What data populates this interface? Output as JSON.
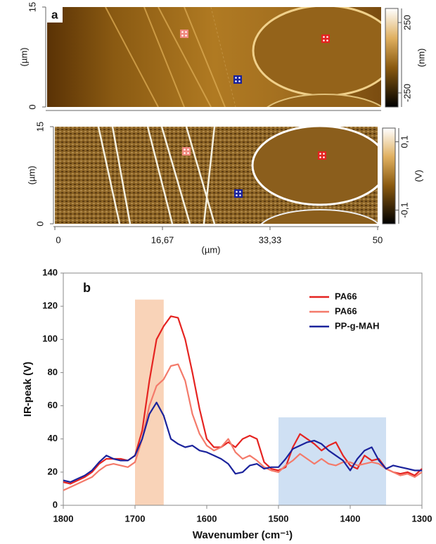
{
  "chart_data": [
    {
      "type": "image",
      "title": "a",
      "ylabel": "(µm)",
      "ylim": [
        0,
        15
      ],
      "yticks": [
        0,
        15
      ],
      "clim": [
        -350,
        350
      ],
      "cticks": [
        250,
        -250
      ],
      "clabel": "(nm)"
    },
    {
      "type": "image",
      "ylabel": "(µm)",
      "xlabel": "(µm)",
      "xlim": [
        0,
        50
      ],
      "ylim": [
        0,
        15
      ],
      "yticks": [
        0,
        15
      ],
      "xticks": [
        0,
        {
          "value": 16.67,
          "label": "16,67"
        },
        {
          "value": 33.33,
          "label": "33,33"
        },
        50
      ],
      "clim": [
        -0.14,
        0.14
      ],
      "cticks": [
        {
          "value": 0.1,
          "label": "0,1"
        },
        {
          "value": -0.1,
          "label": "-0,1"
        }
      ],
      "clabel": "(V)"
    },
    {
      "type": "line",
      "title": "b",
      "xlabel": "Wavenumber (cm⁻¹)",
      "ylabel": "IR-peak (V)",
      "xlim": [
        1800,
        1300
      ],
      "xticks": [
        1800,
        1700,
        1600,
        1500,
        1400,
        1300
      ],
      "ylim": [
        0,
        140
      ],
      "yticks": [
        0,
        20,
        40,
        60,
        80,
        100,
        120,
        140
      ],
      "legend": "upper right",
      "bands": [
        {
          "x": [
            1700,
            1660
          ],
          "y": 124,
          "color": "#f9d3b8"
        },
        {
          "x": [
            1500,
            1350
          ],
          "y": 53,
          "color": "#cfe0f3"
        }
      ],
      "x": [
        1800,
        1790,
        1780,
        1770,
        1760,
        1750,
        1740,
        1730,
        1720,
        1710,
        1700,
        1690,
        1680,
        1670,
        1660,
        1650,
        1640,
        1630,
        1620,
        1610,
        1600,
        1590,
        1580,
        1570,
        1560,
        1550,
        1540,
        1530,
        1520,
        1510,
        1500,
        1490,
        1480,
        1470,
        1460,
        1450,
        1440,
        1430,
        1420,
        1410,
        1400,
        1390,
        1380,
        1370,
        1360,
        1350,
        1340,
        1330,
        1320,
        1310,
        1300
      ],
      "series": [
        {
          "name": "PA66",
          "color": "#e52421",
          "values": [
            14,
            13,
            15,
            17,
            20,
            25,
            28,
            28,
            28,
            27,
            30,
            45,
            75,
            100,
            108,
            114,
            113,
            100,
            80,
            58,
            40,
            35,
            35,
            38,
            35,
            40,
            42,
            40,
            26,
            22,
            21,
            23,
            35,
            43,
            40,
            37,
            33,
            36,
            38,
            30,
            24,
            22,
            30,
            27,
            28,
            22,
            20,
            19,
            20,
            18,
            22
          ]
        },
        {
          "name": "PA66",
          "color": "#f47a6a",
          "values": [
            9,
            11,
            13,
            15,
            17,
            21,
            24,
            25,
            24,
            23,
            26,
            40,
            60,
            72,
            76,
            84,
            85,
            75,
            55,
            43,
            36,
            33,
            35,
            40,
            32,
            28,
            30,
            27,
            23,
            21,
            20,
            24,
            27,
            31,
            28,
            25,
            28,
            25,
            24,
            26,
            26,
            24,
            25,
            26,
            25,
            22,
            20,
            18,
            19,
            17,
            20
          ]
        },
        {
          "name": "PP-g-MAH",
          "color": "#1b239c",
          "values": [
            15,
            14,
            16,
            18,
            21,
            26,
            30,
            28,
            27,
            27,
            30,
            40,
            55,
            62,
            54,
            40,
            37,
            35,
            36,
            33,
            32,
            30,
            28,
            25,
            19,
            20,
            24,
            25,
            22,
            23,
            23,
            28,
            34,
            36,
            38,
            39,
            37,
            33,
            30,
            27,
            21,
            28,
            33,
            35,
            27,
            22,
            24,
            23,
            22,
            21,
            21
          ]
        }
      ]
    }
  ]
}
